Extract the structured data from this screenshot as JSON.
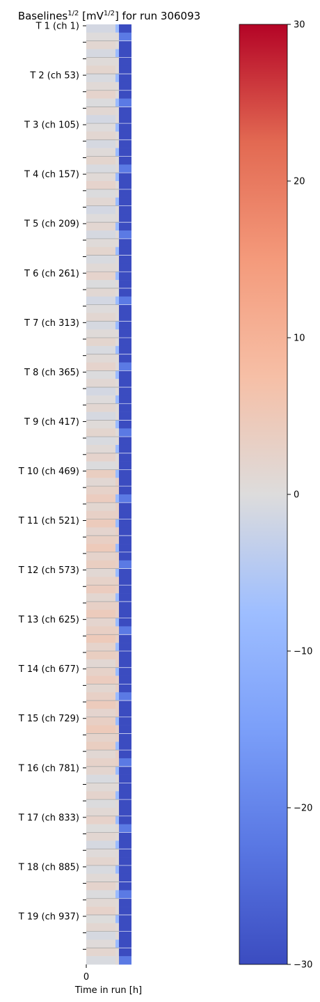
{
  "chart_data": {
    "type": "heatmap",
    "title": {
      "main": "Baselines",
      "exp": "1/2",
      "units_open": " [mV",
      "units_exp": "1/2",
      "units_close": "] for run 306093"
    },
    "xlabel": "Time in run [h]",
    "x_ticks": [
      "0"
    ],
    "y_tick_labels": [
      "T 1 (ch 1)",
      "T 2 (ch 53)",
      "T 3 (ch 105)",
      "T 4 (ch 157)",
      "T 5 (ch 209)",
      "T 6 (ch 261)",
      "T 7 (ch 313)",
      "T 8 (ch 365)",
      "T 9 (ch 417)",
      "T 10 (ch 469)",
      "T 11 (ch 521)",
      "T 12 (ch 573)",
      "T 13 (ch 625)",
      "T 14 (ch 677)",
      "T 15 (ch 729)",
      "T 16 (ch 781)",
      "T 17 (ch 833)",
      "T 18 (ch 885)",
      "T 19 (ch 937)"
    ],
    "rows_per_tower": 6,
    "n_rows": 114,
    "colorbar": {
      "colormap": "coolwarm",
      "vmin": -30,
      "vmax": 30,
      "ticks": [
        30,
        20,
        10,
        0,
        -10,
        -20,
        -30
      ],
      "tick_labels": [
        "30",
        "20",
        "10",
        "0",
        "−10",
        "−20",
        "−30"
      ]
    },
    "column_groups": [
      {
        "name": "early",
        "approx_value": 0
      },
      {
        "name": "late",
        "approx_value": -30
      }
    ],
    "value_profile": [
      {
        "rows_from": 0,
        "rows_to": 53,
        "early_value": 0.5,
        "late_value": -30
      },
      {
        "rows_from": 54,
        "rows_to": 89,
        "early_value": 3,
        "late_value": -30
      },
      {
        "rows_from": 90,
        "rows_to": 113,
        "early_value": 0.8,
        "late_value": -30
      }
    ]
  }
}
